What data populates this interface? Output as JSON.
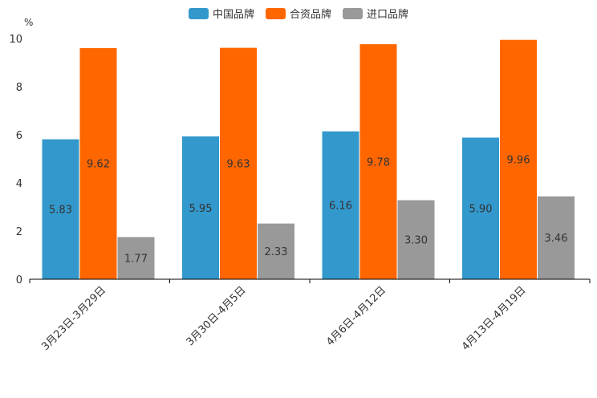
{
  "chart_data": {
    "type": "bar",
    "unit": "%",
    "categories": [
      "3月23日-3月29日",
      "3月30日-4月5日",
      "4月6日-4月12日",
      "4月13日-4月19日"
    ],
    "series": [
      {
        "name": "中国品牌",
        "color": "#3398cc",
        "values": [
          5.83,
          5.95,
          6.16,
          5.9
        ]
      },
      {
        "name": "合资品牌",
        "color": "#ff6600",
        "values": [
          9.62,
          9.63,
          9.78,
          9.96
        ]
      },
      {
        "name": "进口品牌",
        "color": "#999999",
        "values": [
          1.77,
          2.33,
          3.3,
          3.46
        ]
      }
    ],
    "value_labels": [
      [
        "5.83",
        "5.95",
        "6.16",
        "5.90"
      ],
      [
        "9.62",
        "9.63",
        "9.78",
        "9.96"
      ],
      [
        "1.77",
        "2.33",
        "3.30",
        "3.46"
      ]
    ],
    "yticks": [
      "0",
      "2",
      "4",
      "6",
      "8",
      "10"
    ],
    "ylim": [
      0,
      10
    ],
    "legend_position": "top-center",
    "grid": false
  }
}
